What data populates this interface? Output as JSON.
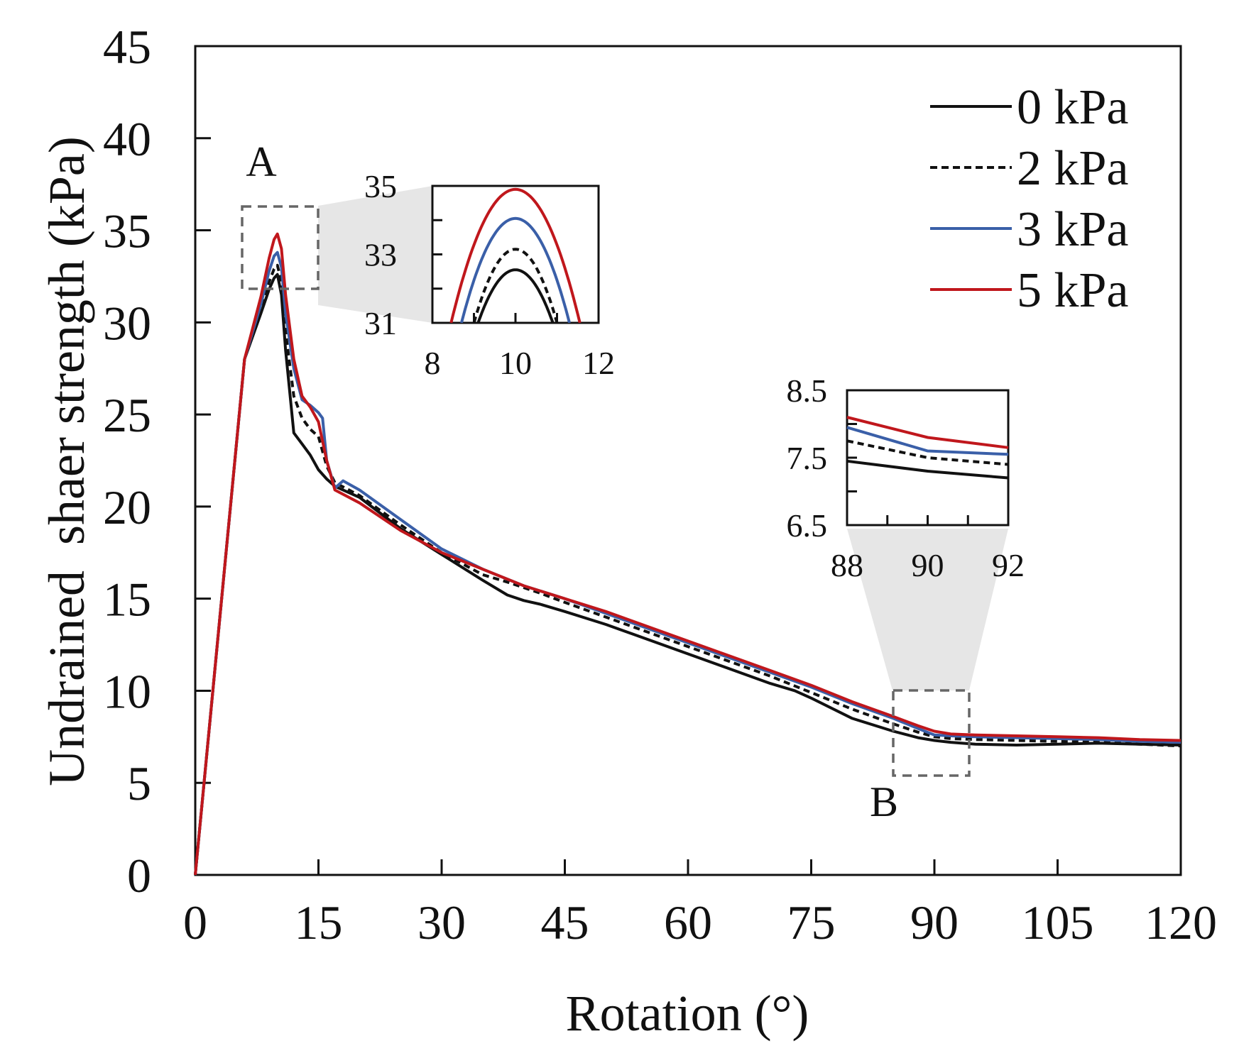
{
  "chart_data": {
    "type": "line",
    "xlabel": "Rotation (°)",
    "ylabel": "Undrained  shaer strength (kPa)",
    "xlim": [
      0,
      120
    ],
    "ylim": [
      0,
      45
    ],
    "xticks": [
      "0",
      "15",
      "30",
      "45",
      "60",
      "75",
      "90",
      "105",
      "120"
    ],
    "yticks": [
      "0",
      "5",
      "10",
      "15",
      "20",
      "25",
      "30",
      "35",
      "40",
      "45"
    ],
    "legend_position": "top-right",
    "series": [
      {
        "name": "0 kPa",
        "color": "#111111",
        "style": "solid",
        "x": [
          0,
          6,
          8,
          9,
          9.6,
          10,
          10.5,
          11,
          12,
          13,
          14,
          15,
          16,
          17,
          20,
          25,
          30,
          35,
          38,
          40,
          42,
          45,
          50,
          60,
          70,
          73,
          75,
          80,
          85,
          88,
          90,
          92,
          95,
          100,
          105,
          110,
          115,
          120
        ],
        "y": [
          0,
          28.0,
          30.5,
          31.8,
          32.4,
          32.6,
          31.5,
          28.5,
          24.0,
          23.4,
          22.8,
          22.0,
          21.5,
          21.1,
          20.5,
          18.8,
          17.4,
          16.0,
          15.2,
          14.9,
          14.7,
          14.3,
          13.6,
          12.0,
          10.4,
          10.0,
          9.6,
          8.5,
          7.8,
          7.45,
          7.3,
          7.2,
          7.1,
          7.05,
          7.1,
          7.15,
          7.1,
          7.05
        ]
      },
      {
        "name": "2 kPa",
        "color": "#111111",
        "style": "dashed",
        "x": [
          0,
          6,
          8,
          9,
          9.6,
          10,
          10.5,
          11,
          12,
          13,
          14,
          15,
          16,
          17,
          20,
          25,
          30,
          35,
          38,
          40,
          42,
          45,
          50,
          60,
          70,
          75,
          80,
          85,
          88,
          90,
          92,
          95,
          100,
          105,
          110,
          115,
          120
        ],
        "y": [
          0,
          28.0,
          30.8,
          32.2,
          32.9,
          33.1,
          32.2,
          29.5,
          26.0,
          24.8,
          24.2,
          23.8,
          22.2,
          21.3,
          20.6,
          19.0,
          17.5,
          16.3,
          15.9,
          15.6,
          15.3,
          14.8,
          14.0,
          12.4,
          10.8,
          9.9,
          9.0,
          8.2,
          7.75,
          7.5,
          7.4,
          7.35,
          7.3,
          7.25,
          7.2,
          7.1,
          7.0
        ]
      },
      {
        "name": "3 kPa",
        "color": "#3a5fa8",
        "style": "solid",
        "x": [
          0,
          6,
          8,
          9,
          9.6,
          10,
          10.5,
          11,
          12,
          13,
          14,
          15,
          15.5,
          16,
          17,
          18,
          20,
          25,
          30,
          35,
          40,
          45,
          50,
          60,
          70,
          75,
          80,
          85,
          88,
          90,
          92,
          95,
          100,
          105,
          110,
          115,
          120
        ],
        "y": [
          0,
          28.0,
          31.0,
          32.8,
          33.6,
          33.8,
          33.0,
          30.5,
          27.5,
          25.8,
          25.5,
          25.1,
          24.8,
          22.5,
          21.0,
          21.4,
          20.9,
          19.3,
          17.7,
          16.6,
          15.7,
          15.0,
          14.2,
          12.6,
          11.0,
          10.2,
          9.3,
          8.5,
          7.95,
          7.6,
          7.55,
          7.5,
          7.45,
          7.4,
          7.35,
          7.25,
          7.2
        ]
      },
      {
        "name": "5 kPa",
        "color": "#c0171c",
        "style": "solid",
        "x": [
          0,
          6,
          8,
          9,
          9.6,
          10,
          10.5,
          11,
          12,
          13,
          14,
          15,
          16,
          17,
          20,
          25,
          30,
          35,
          40,
          45,
          50,
          60,
          70,
          75,
          80,
          85,
          88,
          90,
          92,
          95,
          100,
          105,
          110,
          115,
          120
        ],
        "y": [
          0,
          28.0,
          31.4,
          33.5,
          34.5,
          34.8,
          34.0,
          31.5,
          28.0,
          26.0,
          25.4,
          24.6,
          22.5,
          20.9,
          20.2,
          18.7,
          17.5,
          16.6,
          15.7,
          15.0,
          14.3,
          12.7,
          11.1,
          10.3,
          9.4,
          8.6,
          8.1,
          7.8,
          7.65,
          7.6,
          7.55,
          7.5,
          7.45,
          7.35,
          7.3
        ]
      }
    ],
    "annotations": [
      {
        "label": "A",
        "x_range": [
          5,
          15
        ],
        "y_range": [
          31.8,
          36.3
        ]
      },
      {
        "label": "B",
        "x_range": [
          85.5,
          94.5
        ],
        "y_range": [
          5.4,
          10.0
        ]
      }
    ],
    "insets": [
      {
        "label": "A",
        "xlim": [
          8,
          12
        ],
        "ylim": [
          31,
          35
        ],
        "xticks": [
          "8",
          "10",
          "12"
        ],
        "yticks": [
          "31",
          "33",
          "35"
        ],
        "peaks": {
          "0 kPa": 32.55,
          "2 kPa": 33.15,
          "3 kPa": 34.05,
          "5 kPa": 34.9
        }
      },
      {
        "label": "B",
        "xlim": [
          88,
          92
        ],
        "ylim": [
          6.5,
          8.5
        ],
        "xticks": [
          "88",
          "90",
          "92"
        ],
        "yticks": [
          "6.5",
          "7.5",
          "8.5"
        ]
      }
    ]
  }
}
